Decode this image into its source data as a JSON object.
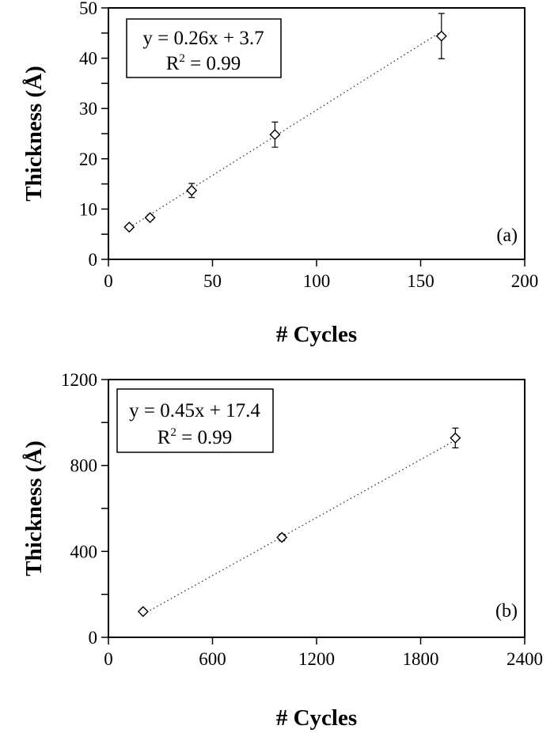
{
  "chart_data": [
    {
      "type": "scatter",
      "panel_label": "(a)",
      "xlabel": "# Cycles",
      "ylabel": "Thickness (Å)",
      "xlim": [
        0,
        200
      ],
      "ylim": [
        0,
        50
      ],
      "xticks": [
        0,
        50,
        100,
        150,
        200
      ],
      "yticks": [
        0,
        10,
        20,
        30,
        40,
        50
      ],
      "y_minor_step": 5,
      "grid": false,
      "marker": "open-diamond",
      "points": [
        {
          "x": 10,
          "y": 6.4,
          "err": 0.3
        },
        {
          "x": 20,
          "y": 8.3,
          "err": 0.5
        },
        {
          "x": 40,
          "y": 13.7,
          "err": 1.4
        },
        {
          "x": 80,
          "y": 24.8,
          "err": 2.5
        },
        {
          "x": 160,
          "y": 44.4,
          "err": 4.5
        }
      ],
      "fit": {
        "slope": 0.26,
        "intercept": 3.7,
        "style": "dotted",
        "equation": "y = 0.26x + 3.7",
        "r2_prefix": "R",
        "r2_sup": "2",
        "r2_value": " = 0.99"
      }
    },
    {
      "type": "scatter",
      "panel_label": "(b)",
      "xlabel": "# Cycles",
      "ylabel": "Thickness (Å)",
      "xlim": [
        0,
        2400
      ],
      "ylim": [
        0,
        1200
      ],
      "xticks": [
        0,
        600,
        1200,
        1800,
        2400
      ],
      "yticks": [
        0,
        400,
        800,
        1200
      ],
      "y_minor_step": 200,
      "grid": false,
      "marker": "open-diamond",
      "points": [
        {
          "x": 200,
          "y": 120,
          "err": 6
        },
        {
          "x": 1000,
          "y": 465,
          "err": 15
        },
        {
          "x": 2000,
          "y": 928,
          "err": 46
        }
      ],
      "fit": {
        "slope": 0.45,
        "intercept": 17.4,
        "style": "dotted",
        "equation": "y = 0.45x + 17.4",
        "r2_prefix": "R",
        "r2_sup": "2",
        "r2_value": " = 0.99"
      }
    }
  ]
}
